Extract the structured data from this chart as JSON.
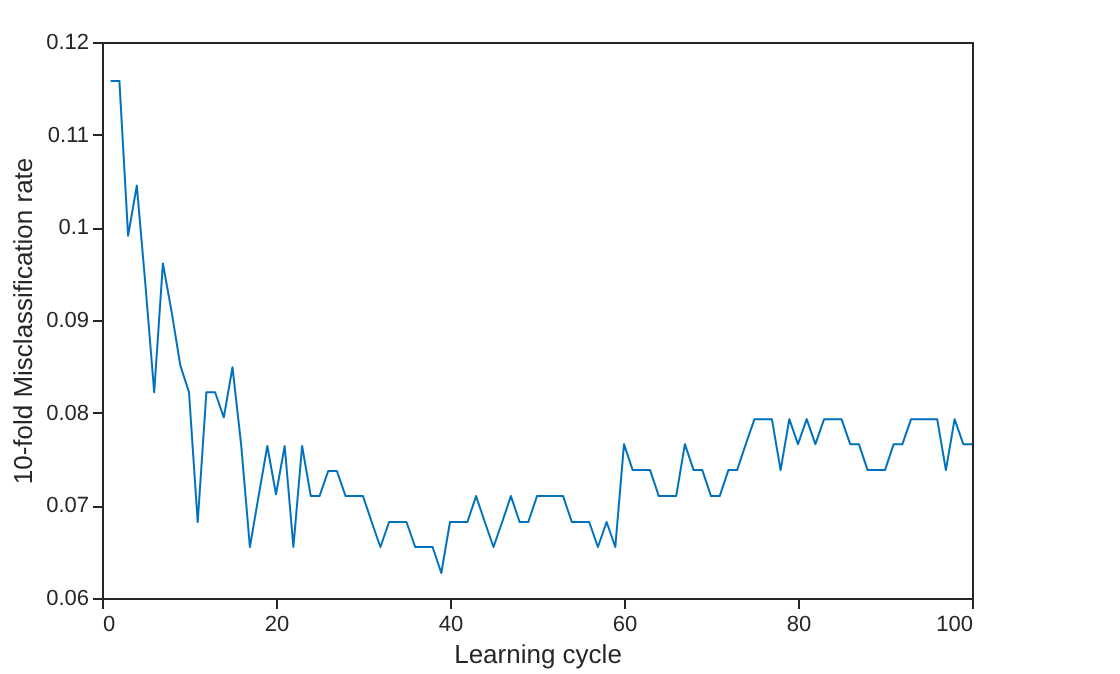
{
  "chart_data": {
    "type": "line",
    "xlabel": "Learning cycle",
    "ylabel": "10-fold Misclassification rate",
    "x": [
      1,
      2,
      3,
      4,
      5,
      6,
      7,
      8,
      9,
      10,
      11,
      12,
      13,
      14,
      15,
      16,
      17,
      18,
      19,
      20,
      21,
      22,
      23,
      24,
      25,
      26,
      27,
      28,
      29,
      30,
      31,
      32,
      33,
      34,
      35,
      36,
      37,
      38,
      39,
      40,
      41,
      42,
      43,
      44,
      45,
      46,
      47,
      48,
      49,
      50,
      51,
      52,
      53,
      54,
      55,
      56,
      57,
      58,
      59,
      60,
      61,
      62,
      63,
      64,
      65,
      66,
      67,
      68,
      69,
      70,
      71,
      72,
      73,
      74,
      75,
      76,
      77,
      78,
      79,
      80,
      81,
      82,
      83,
      84,
      85,
      86,
      87,
      88,
      89,
      90,
      91,
      92,
      93,
      94,
      95,
      96,
      97,
      98,
      99,
      100
    ],
    "series": [
      {
        "color": "#0072bd",
        "values": [
          0.1158,
          0.1158,
          0.0991,
          0.1045,
          0.0937,
          0.0822,
          0.0961,
          0.0909,
          0.0851,
          0.0822,
          0.0682,
          0.0822,
          0.0822,
          0.0795,
          0.0849,
          0.0765,
          0.0655,
          0.071,
          0.0764,
          0.0712,
          0.0764,
          0.0655,
          0.0764,
          0.071,
          0.071,
          0.0737,
          0.0737,
          0.071,
          0.071,
          0.071,
          0.0682,
          0.0655,
          0.0682,
          0.0682,
          0.0682,
          0.0655,
          0.0655,
          0.0655,
          0.0627,
          0.0682,
          0.0682,
          0.0682,
          0.071,
          0.0682,
          0.0655,
          0.0682,
          0.071,
          0.0682,
          0.0682,
          0.071,
          0.071,
          0.071,
          0.071,
          0.0682,
          0.0682,
          0.0682,
          0.0655,
          0.0682,
          0.0655,
          0.0766,
          0.0738,
          0.0738,
          0.0738,
          0.071,
          0.071,
          0.071,
          0.0766,
          0.0738,
          0.0738,
          0.071,
          0.071,
          0.0738,
          0.0738,
          0.0766,
          0.0793,
          0.0793,
          0.0793,
          0.0738,
          0.0793,
          0.0766,
          0.0793,
          0.0766,
          0.0793,
          0.0793,
          0.0793,
          0.0766,
          0.0766,
          0.0738,
          0.0738,
          0.0738,
          0.0766,
          0.0766,
          0.0793,
          0.0793,
          0.0793,
          0.0793,
          0.0738,
          0.0793,
          0.0766,
          0.0766
        ]
      }
    ],
    "xlim": [
      0,
      100
    ],
    "xticks": [
      0,
      20,
      40,
      60,
      80,
      100
    ],
    "ylim": [
      0.06,
      0.12
    ],
    "yticks": [
      0.06,
      0.07,
      0.08,
      0.09,
      0.1,
      0.11,
      0.12
    ],
    "grid": false,
    "legend": false,
    "marker": "none",
    "line_style": "solid"
  }
}
